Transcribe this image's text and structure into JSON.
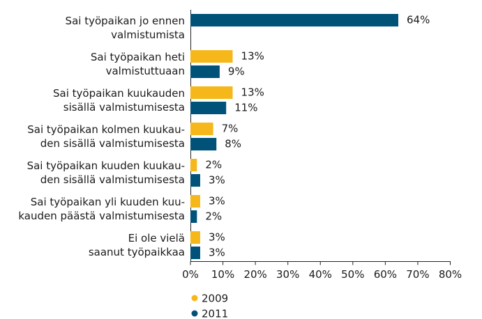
{
  "chart_data": {
    "type": "bar",
    "orientation": "horizontal",
    "categories": [
      "Sai työpaikan jo ennen\nvalmistumista",
      "Sai työpaikan heti\nvalmistuttuaan",
      "Sai työpaikan kuukauden\nsisällä valmistumisesta",
      "Sai työpaikan kolmen kuukau-\nden sisällä valmistumisesta",
      "Sai työpaikan kuuden kuukau-\nden sisällä valmistumisesta",
      "Sai työpaikan yli kuuden kuu-\nkauden päästä valmistumisesta",
      "Ei ole vielä\nsaanut työpaikkaa"
    ],
    "series": [
      {
        "name": "2009",
        "color": "#f6b71a",
        "values": [
          null,
          13,
          13,
          7,
          2,
          3,
          3
        ],
        "value_labels": [
          null,
          "13%",
          "13%",
          "7%",
          "2%",
          "3%",
          "3%"
        ]
      },
      {
        "name": "2011",
        "color": "#005279",
        "values": [
          64,
          9,
          11,
          8,
          3,
          2,
          3
        ],
        "value_labels": [
          "64%",
          "9%",
          "11%",
          "8%",
          "3%",
          "2%",
          "3%"
        ]
      }
    ],
    "xlim": [
      0,
      80
    ],
    "xticks": [
      {
        "value": 0,
        "label": "0%"
      },
      {
        "value": 10,
        "label": "10%"
      },
      {
        "value": 20,
        "label": "20%"
      },
      {
        "value": 30,
        "label": "30%"
      },
      {
        "value": 40,
        "label": "40%"
      },
      {
        "value": 50,
        "label": "50%"
      },
      {
        "value": 60,
        "label": "60%"
      },
      {
        "value": 70,
        "label": "70%"
      },
      {
        "value": 80,
        "label": "80%"
      }
    ],
    "legend": "bottom-left"
  }
}
